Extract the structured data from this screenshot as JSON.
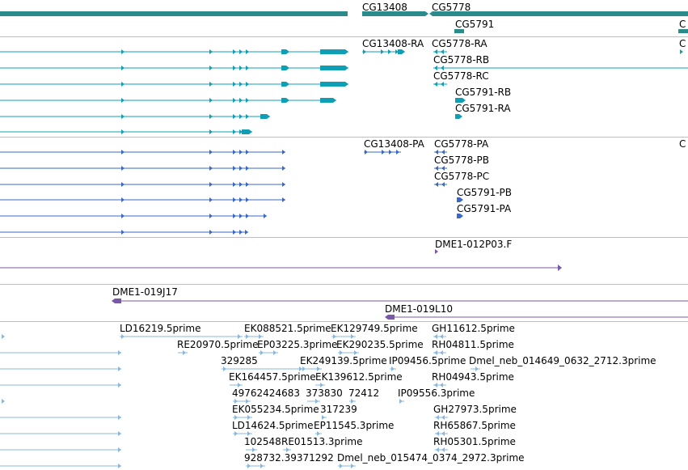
{
  "colors": {
    "gene": "#2b8a8a",
    "mrna": "#0f9fb5",
    "protein": "#3a68c4",
    "clone": "#7a58a8",
    "est": "#8ab8dc",
    "divider": "#bfbfbf"
  },
  "tracks": {
    "genes": {
      "labels": [
        "CG13408",
        "CG5778",
        "CG5791",
        "C"
      ]
    },
    "mrna": {
      "labels": [
        "CG13408-RA",
        "CG5778-RA",
        "CG5778-RB",
        "CG5778-RC",
        "CG5791-RB",
        "CG5791-RA",
        "C"
      ]
    },
    "proteins": {
      "labels": [
        "CG13408-PA",
        "CG5778-PA",
        "CG5778-PB",
        "CG5778-PC",
        "CG5791-PB",
        "CG5791-PA",
        "C"
      ]
    },
    "clone_top": {
      "labels": [
        "DME1-012P03.F"
      ]
    },
    "clone_bottom": {
      "labels": [
        "DME1-019J17",
        "DME1-019L10"
      ]
    },
    "est": {
      "labels": [
        "LD16219.5prime",
        "EK088521.5prime",
        "EK129749.5prime",
        "GH11612.5prime",
        "RE20970.5prime",
        "EP03225.3prime",
        "EK290235.5prime",
        "RH04811.5prime",
        "329285",
        "EK249139.5prime",
        "IP09456.5prime",
        "Dmel_neb_014649_0632_2712.3prime",
        "EK164457.5prime",
        "EK139612.5prime",
        "RH04943.5prime",
        "49762424683",
        "373830",
        "72412",
        "IP09556.3prime",
        "EK055234.5prime",
        "317239",
        "GH27973.5prime",
        "LD14624.5prime",
        "EP11545.3prime",
        "RH65867.5prime",
        "102548",
        "RE01513.3prime",
        "RH05301.5prime",
        "928732.39371292",
        "Dmel_neb_015474_0374_2972.3prime"
      ]
    }
  }
}
